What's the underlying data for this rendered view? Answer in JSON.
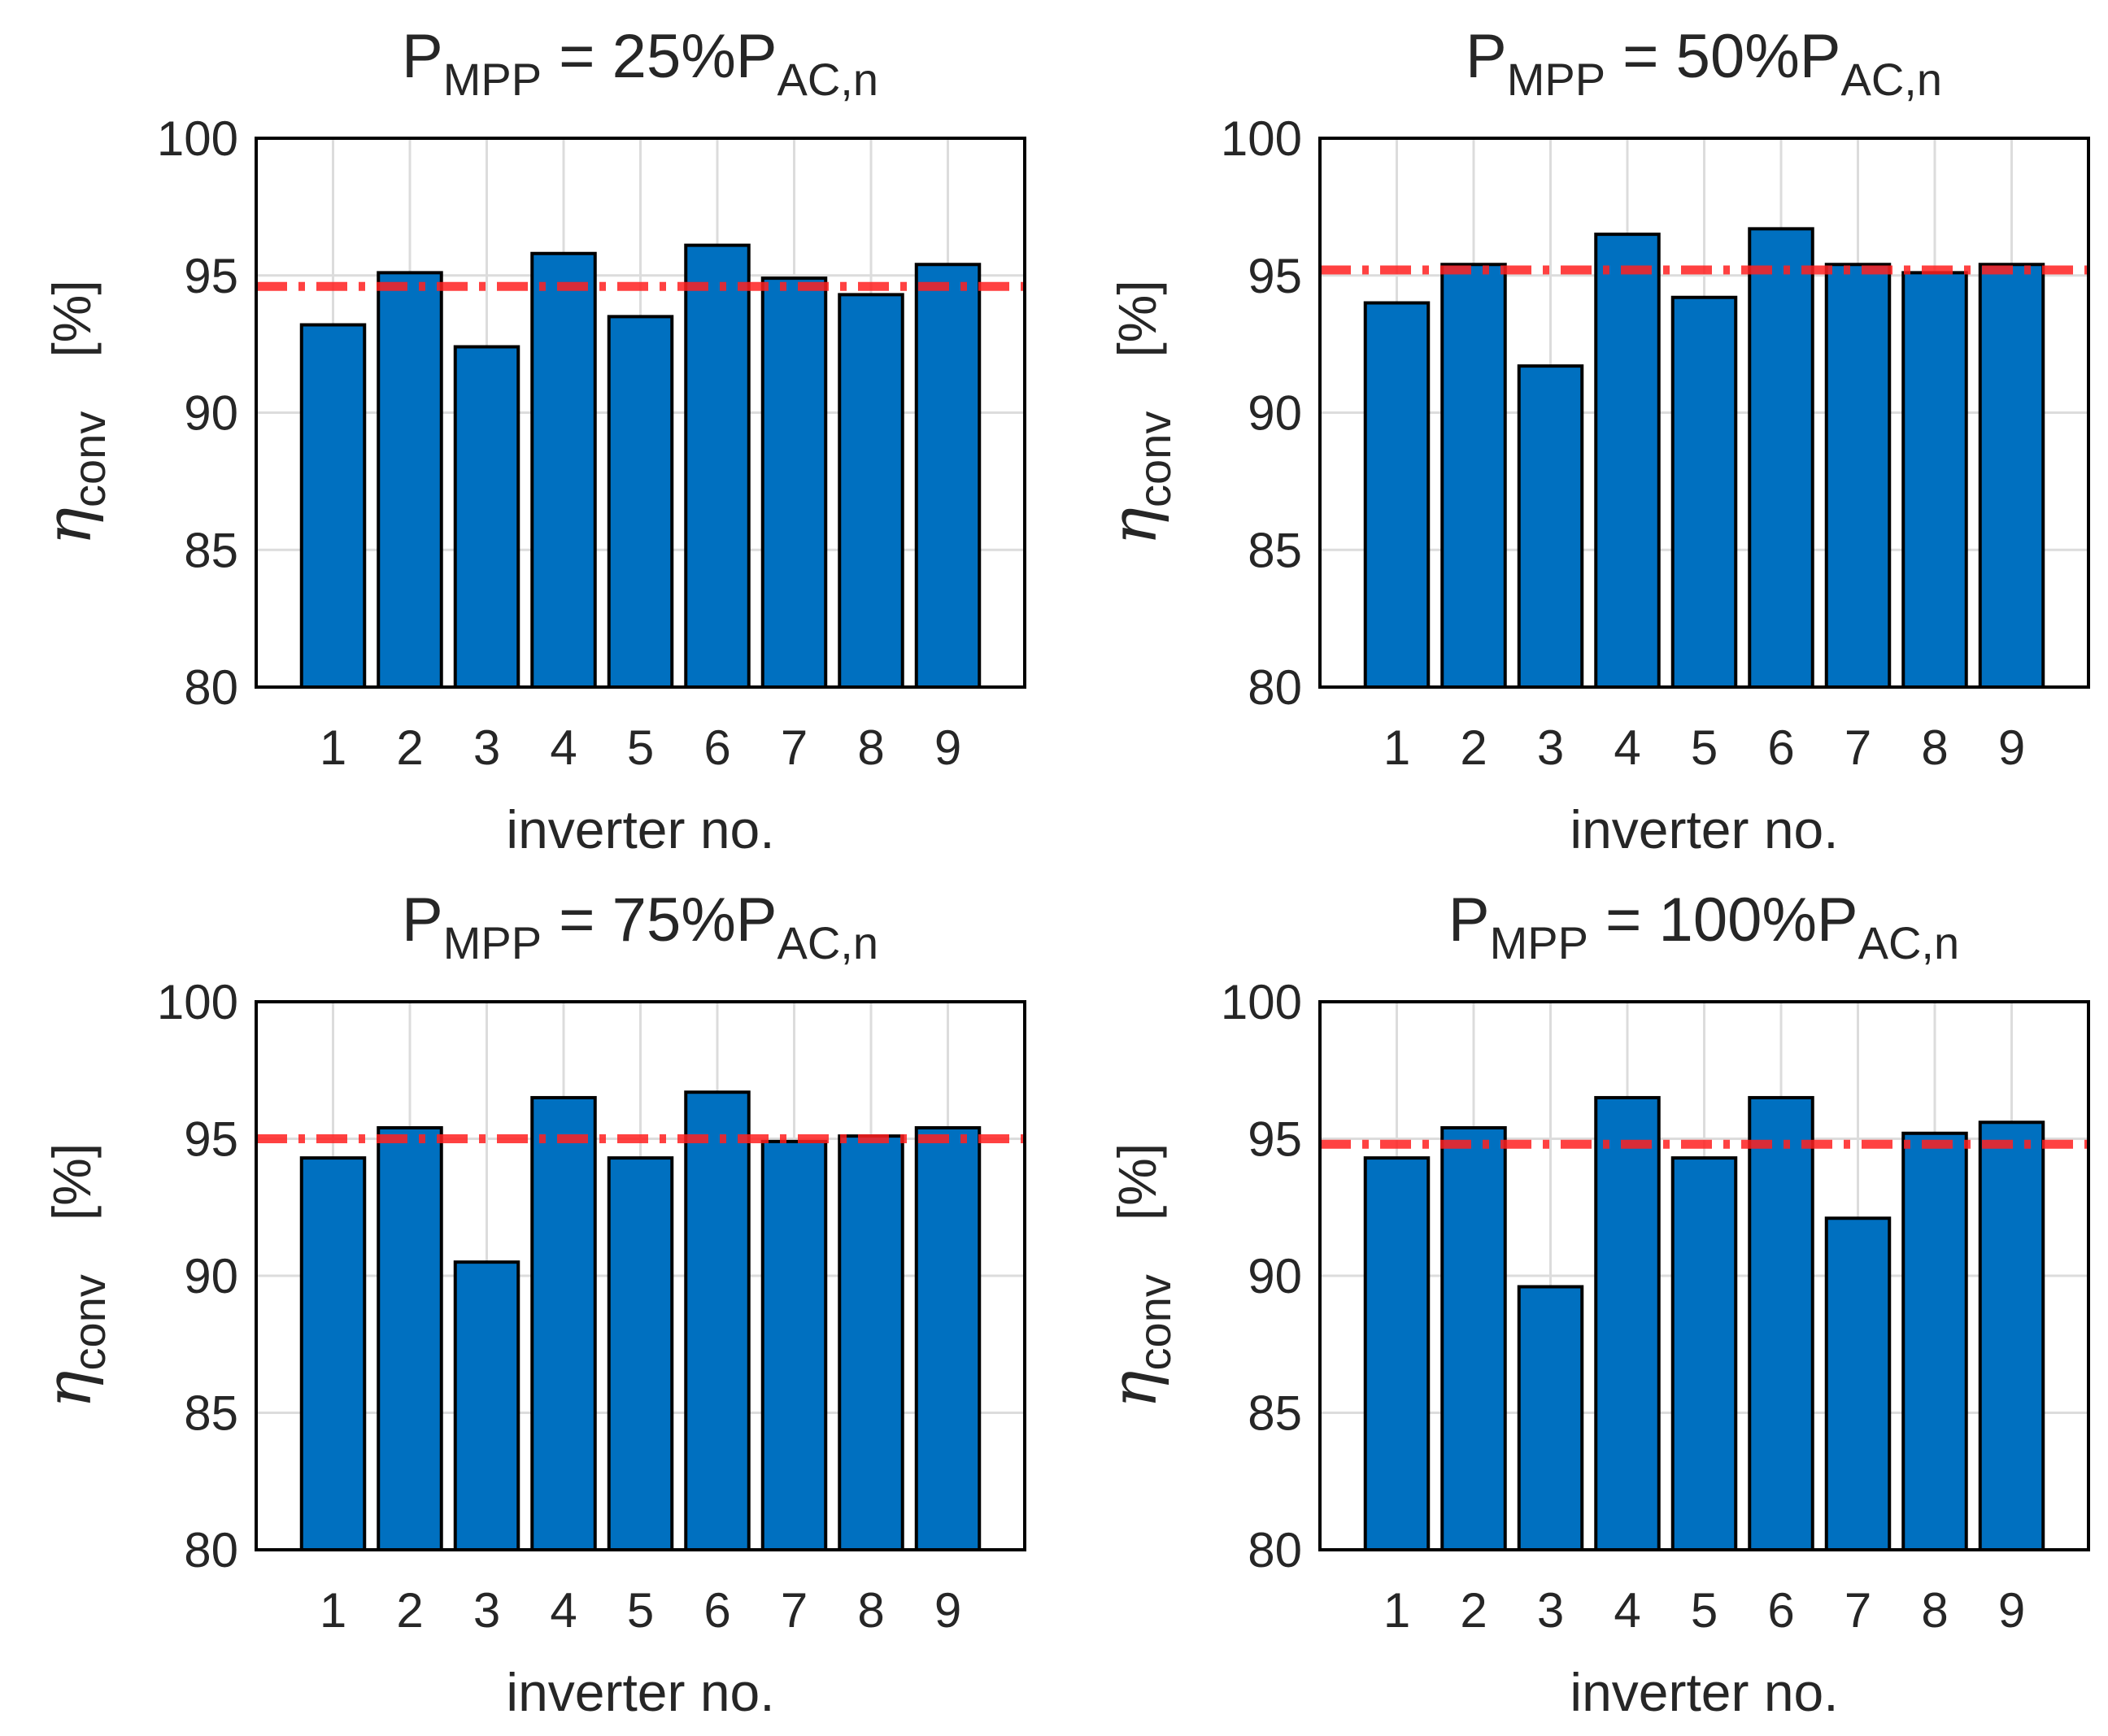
{
  "chart_data": [
    {
      "type": "bar",
      "title": {
        "main": "P",
        "sub1": "MPP",
        "middle": " = 25%P",
        "sub2": "AC,n"
      },
      "categories": [
        "1",
        "2",
        "3",
        "4",
        "5",
        "6",
        "7",
        "8",
        "9"
      ],
      "values": [
        93.2,
        95.1,
        92.4,
        95.8,
        93.5,
        96.1,
        94.9,
        94.3,
        95.4
      ],
      "reference_line": 94.6,
      "xlabel": "inverter no.",
      "ylabel": {
        "symbol": "η",
        "sub": "conv",
        "unit": "[%]"
      },
      "ylim": [
        80,
        100
      ],
      "yticks": [
        80,
        85,
        90,
        95,
        100
      ],
      "grid": true
    },
    {
      "type": "bar",
      "title": {
        "main": "P",
        "sub1": "MPP",
        "middle": " = 50%P",
        "sub2": "AC,n"
      },
      "categories": [
        "1",
        "2",
        "3",
        "4",
        "5",
        "6",
        "7",
        "8",
        "9"
      ],
      "values": [
        94.0,
        95.4,
        91.7,
        96.5,
        94.2,
        96.7,
        95.4,
        95.1,
        95.4
      ],
      "reference_line": 95.2,
      "xlabel": "inverter no.",
      "ylabel": {
        "symbol": "η",
        "sub": "conv",
        "unit": "[%]"
      },
      "ylim": [
        80,
        100
      ],
      "yticks": [
        80,
        85,
        90,
        95,
        100
      ],
      "grid": true
    },
    {
      "type": "bar",
      "title": {
        "main": "P",
        "sub1": "MPP",
        "middle": " = 75%P",
        "sub2": "AC,n"
      },
      "categories": [
        "1",
        "2",
        "3",
        "4",
        "5",
        "6",
        "7",
        "8",
        "9"
      ],
      "values": [
        94.3,
        95.4,
        90.5,
        96.5,
        94.3,
        96.7,
        94.9,
        95.1,
        95.4
      ],
      "reference_line": 95.0,
      "xlabel": "inverter no.",
      "ylabel": {
        "symbol": "η",
        "sub": "conv",
        "unit": "[%]"
      },
      "ylim": [
        80,
        100
      ],
      "yticks": [
        80,
        85,
        90,
        95,
        100
      ],
      "grid": true
    },
    {
      "type": "bar",
      "title": {
        "main": "P",
        "sub1": "MPP",
        "middle": " = 100%P",
        "sub2": "AC,n"
      },
      "categories": [
        "1",
        "2",
        "3",
        "4",
        "5",
        "6",
        "7",
        "8",
        "9"
      ],
      "values": [
        94.3,
        95.4,
        89.6,
        96.5,
        94.3,
        96.5,
        92.1,
        95.2,
        95.6
      ],
      "reference_line": 94.8,
      "xlabel": "inverter no.",
      "ylabel": {
        "symbol": "η",
        "sub": "conv",
        "unit": "[%]"
      },
      "ylim": [
        80,
        100
      ],
      "yticks": [
        80,
        85,
        90,
        95,
        100
      ],
      "grid": true
    }
  ],
  "colors": {
    "bar_fill": "#0070c0",
    "bar_stroke": "#000000",
    "reference_line": "#ff2020",
    "grid": "#dcdcdc",
    "axis": "#000000",
    "text": "#262626"
  }
}
